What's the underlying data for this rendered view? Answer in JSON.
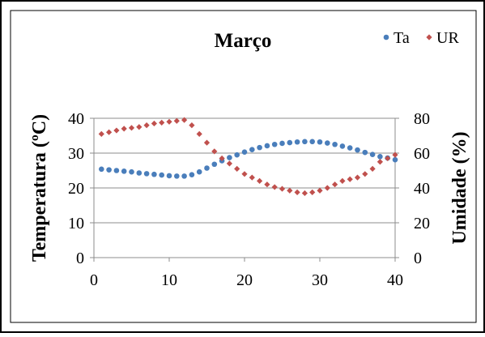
{
  "chart_data": {
    "type": "scatter",
    "title": "Março",
    "ylabel": "Temperatura (ºC)",
    "y2label": "Umidade (%)",
    "xlim": [
      0,
      40
    ],
    "ylim": [
      0,
      40
    ],
    "y2lim": [
      0,
      80
    ],
    "x_ticks": [
      0,
      10,
      20,
      30,
      40
    ],
    "y_ticks": [
      0,
      10,
      20,
      30,
      40
    ],
    "y2_ticks": [
      0,
      20,
      40,
      60,
      80
    ],
    "grid": true,
    "legend_position": "top-right",
    "series": [
      {
        "name": "Ta",
        "axis": "left",
        "color": "#4a7ebb",
        "marker": "circle",
        "x": [
          1,
          2,
          3,
          4,
          5,
          6,
          7,
          8,
          9,
          10,
          11,
          12,
          13,
          14,
          15,
          16,
          17,
          18,
          19,
          20,
          21,
          22,
          23,
          24,
          25,
          26,
          27,
          28,
          29,
          30,
          31,
          32,
          33,
          34,
          35,
          36,
          37,
          38,
          39,
          40
        ],
        "y": [
          25.4,
          25.2,
          25.0,
          24.8,
          24.6,
          24.3,
          24.1,
          23.9,
          23.7,
          23.5,
          23.4,
          23.4,
          23.8,
          24.6,
          25.7,
          26.8,
          27.8,
          28.7,
          29.5,
          30.3,
          31.0,
          31.6,
          32.1,
          32.5,
          32.8,
          33.0,
          33.2,
          33.3,
          33.3,
          33.2,
          32.9,
          32.5,
          32.0,
          31.5,
          30.9,
          30.2,
          29.6,
          29.0,
          28.6,
          28.1
        ]
      },
      {
        "name": "UR",
        "axis": "right",
        "color": "#c0504d",
        "marker": "diamond",
        "x": [
          1,
          2,
          3,
          4,
          5,
          6,
          7,
          8,
          9,
          10,
          11,
          12,
          13,
          14,
          15,
          16,
          17,
          18,
          19,
          20,
          21,
          22,
          23,
          24,
          25,
          26,
          27,
          28,
          29,
          30,
          31,
          32,
          33,
          34,
          35,
          36,
          37,
          38,
          39,
          40
        ],
        "y": [
          71,
          72,
          73,
          74,
          74.5,
          75,
          76,
          77,
          77.5,
          78,
          78.5,
          79,
          76,
          71,
          66,
          61,
          57,
          54,
          51,
          48,
          46,
          44,
          42,
          40.5,
          39.5,
          38.5,
          37.5,
          37,
          37.5,
          38.5,
          40,
          42,
          44,
          45,
          46,
          48,
          51,
          55,
          57,
          59
        ]
      }
    ]
  }
}
